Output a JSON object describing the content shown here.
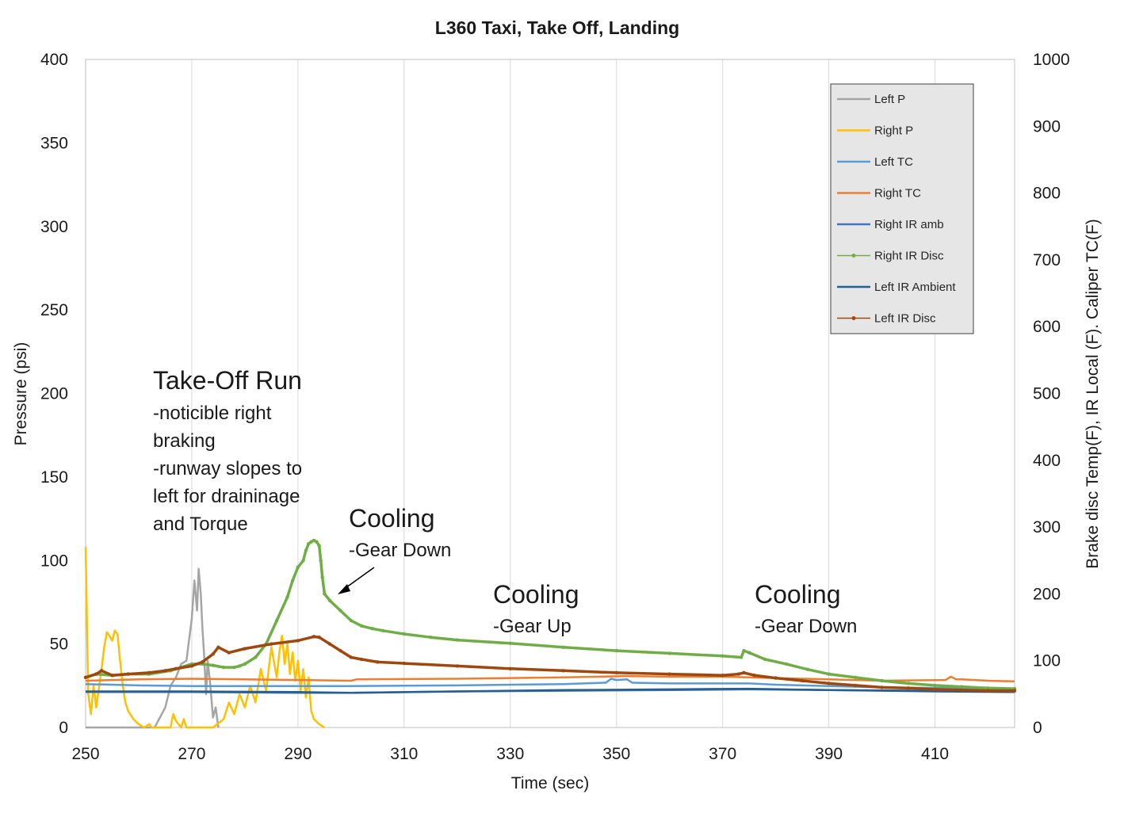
{
  "chart_data": {
    "type": "line",
    "title": "L360 Taxi, Take Off, Landing",
    "xlabel": "Time (sec)",
    "ylabel": "Pressure (psi)",
    "y2label": "Brake disc Temp(F), IR Local (F). Caliper TC(F)",
    "xlim": [
      250,
      425
    ],
    "ylim": [
      0,
      400
    ],
    "y2lim": [
      0,
      1000
    ],
    "xticks": [
      250,
      270,
      290,
      310,
      330,
      350,
      370,
      390,
      410
    ],
    "yticks": [
      0,
      50,
      100,
      150,
      200,
      250,
      300,
      350,
      400
    ],
    "y2ticks": [
      0,
      100,
      200,
      300,
      400,
      500,
      600,
      700,
      800,
      900,
      1000
    ],
    "grid": "vertical",
    "legend_position": "top-right",
    "series": [
      {
        "name": "Left P",
        "axis": "left",
        "color": "#a5a5a5",
        "marker": false,
        "x": [
          250,
          263,
          265,
          266,
          267,
          268,
          269,
          270,
          270.5,
          271,
          271.3,
          271.7,
          272,
          272.3,
          272.7,
          273,
          273.5,
          274,
          274.5,
          275
        ],
        "y": [
          0,
          0,
          12,
          25,
          30,
          38,
          40,
          65,
          88,
          70,
          95,
          80,
          60,
          45,
          20,
          40,
          25,
          6,
          12,
          0
        ]
      },
      {
        "name": "Right P",
        "axis": "left",
        "color": "#ffc000",
        "marker": false,
        "x": [
          250,
          250.5,
          251,
          251.5,
          252,
          253,
          253.5,
          254,
          254.5,
          255,
          255.5,
          256,
          256.5,
          257,
          257.5,
          258,
          259,
          260,
          261,
          262,
          262.5,
          263,
          263.5,
          264,
          265,
          266,
          266.5,
          267,
          268,
          268.5,
          269,
          270,
          270.5,
          271,
          272,
          274,
          276,
          277,
          278,
          279,
          280,
          281,
          282,
          283,
          284,
          285,
          286,
          286.5,
          287,
          287.5,
          288,
          288.5,
          289,
          289.5,
          290,
          290.5,
          291,
          291.5,
          292,
          292.5,
          293,
          294,
          295
        ],
        "y": [
          108,
          20,
          8,
          25,
          12,
          35,
          48,
          57,
          55,
          52,
          58,
          56,
          40,
          25,
          15,
          10,
          5,
          2,
          0,
          2,
          0,
          0,
          0,
          0,
          0,
          0,
          8,
          4,
          0,
          5,
          0,
          0,
          0,
          0,
          0,
          0,
          5,
          15,
          8,
          20,
          12,
          25,
          15,
          35,
          22,
          48,
          30,
          45,
          55,
          38,
          50,
          32,
          45,
          28,
          40,
          22,
          35,
          18,
          30,
          10,
          5,
          2,
          0
        ]
      },
      {
        "name": "Left TC",
        "axis": "right",
        "color": "#5b9bd5",
        "marker": false,
        "x": [
          250,
          260,
          270,
          290,
          300,
          320,
          340,
          348,
          349,
          350,
          352,
          353,
          360,
          375,
          380,
          400,
          425
        ],
        "y": [
          65,
          63,
          62,
          62,
          62,
          63,
          65,
          67,
          73,
          71,
          72,
          67,
          66,
          66,
          64,
          60,
          58
        ]
      },
      {
        "name": "Right TC",
        "axis": "right",
        "color": "#ed7d31",
        "marker": false,
        "x": [
          250,
          260,
          270,
          280,
          290,
          300,
          301,
          320,
          340,
          352,
          360,
          370,
          375,
          380,
          390,
          400,
          412,
          413,
          414,
          415,
          420,
          425
        ],
        "y": [
          70,
          72,
          73,
          72,
          71,
          70,
          72,
          73,
          75,
          77,
          76,
          76,
          75,
          74,
          72,
          70,
          71,
          76,
          72,
          72,
          70,
          69
        ]
      },
      {
        "name": "Right IR amb",
        "axis": "right",
        "color": "#4472c4",
        "marker": false,
        "x": [
          250,
          270,
          290,
          300,
          320,
          340,
          360,
          375,
          390,
          410,
          425
        ],
        "y": [
          53,
          53,
          52,
          52,
          54,
          55,
          56,
          57,
          56,
          55,
          54
        ]
      },
      {
        "name": "Right IR Disc",
        "axis": "right",
        "color": "#70ad47",
        "marker": true,
        "x": [
          250,
          252,
          255,
          258,
          262,
          266,
          268,
          270,
          272,
          274,
          276,
          278,
          279,
          280,
          282,
          284,
          286,
          288,
          289,
          290,
          291,
          291.5,
          292,
          292.5,
          293,
          293.5,
          294,
          294.3,
          294.6,
          295,
          296,
          298,
          300,
          302,
          304,
          306,
          310,
          315,
          320,
          330,
          340,
          350,
          360,
          370,
          373.5,
          374,
          375,
          378,
          382,
          386,
          390,
          395,
          400,
          405,
          410,
          415,
          420,
          425
        ],
        "y": [
          75,
          80,
          78,
          80,
          80,
          85,
          90,
          95,
          95,
          93,
          90,
          90,
          92,
          95,
          105,
          125,
          160,
          195,
          220,
          240,
          250,
          265,
          275,
          278,
          280,
          278,
          272,
          250,
          225,
          200,
          190,
          175,
          160,
          152,
          148,
          145,
          140,
          135,
          131,
          126,
          120,
          115,
          111,
          107,
          105,
          115,
          112,
          102,
          95,
          87,
          80,
          75,
          70,
          66,
          63,
          61,
          59,
          58
        ]
      },
      {
        "name": "Left IR Ambient",
        "axis": "right",
        "color": "#255e91",
        "marker": false,
        "x": [
          250,
          270,
          290,
          300,
          320,
          340,
          360,
          375,
          390,
          410,
          425
        ],
        "y": [
          54,
          54,
          53,
          52,
          54,
          56,
          57,
          58,
          56,
          54,
          53
        ]
      },
      {
        "name": "Left IR Disc",
        "axis": "right",
        "color": "#9e480e",
        "marker": true,
        "x": [
          250,
          252,
          253,
          255,
          258,
          262,
          265,
          267,
          270,
          272,
          274,
          275,
          277,
          280,
          285,
          290,
          293,
          294,
          296,
          298,
          300,
          302,
          305,
          310,
          320,
          330,
          340,
          350,
          360,
          370,
          373,
          374,
          376,
          380,
          385,
          390,
          395,
          400,
          405,
          410,
          415,
          420,
          425
        ],
        "y": [
          75,
          80,
          85,
          78,
          80,
          82,
          85,
          88,
          92,
          98,
          110,
          120,
          112,
          118,
          125,
          130,
          136,
          135,
          125,
          115,
          105,
          102,
          98,
          96,
          92,
          88,
          85,
          82,
          80,
          78,
          80,
          82,
          78,
          74,
          70,
          66,
          63,
          60,
          59,
          57,
          56,
          55,
          55
        ]
      }
    ],
    "annotations": [
      {
        "title": "Take-Off Run",
        "lines": [
          "-noticible right",
          "braking",
          "-runway slopes to",
          "left for draininage",
          "and Torque"
        ]
      },
      {
        "title": "Cooling",
        "lines": [
          "-Gear Down"
        ],
        "arrow": true
      },
      {
        "title": "Cooling",
        "lines": [
          "-Gear Up"
        ]
      },
      {
        "title": "Cooling",
        "lines": [
          "-Gear Down"
        ]
      }
    ]
  }
}
